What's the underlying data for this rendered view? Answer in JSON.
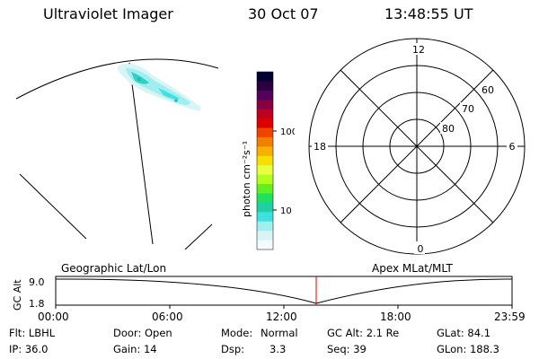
{
  "header": {
    "title": "Ultraviolet Imager",
    "date": "30 Oct 07",
    "time": "13:48:55 UT"
  },
  "colorbar": {
    "unit_label": "photon cm⁻²s⁻¹",
    "ticks": [
      "100",
      "10"
    ],
    "colors": [
      "#000033",
      "#2a0040",
      "#55005a",
      "#880044",
      "#bb0022",
      "#dd0000",
      "#ee4400",
      "#f08000",
      "#f5b000",
      "#f7e000",
      "#e8ff40",
      "#b0ff20",
      "#60f020",
      "#20e060",
      "#20d0a0",
      "#40e0e0",
      "#a0eef0",
      "#d8f4f4",
      "#f4fafa"
    ]
  },
  "polar_plot": {
    "mlt_labels": {
      "top": "12",
      "left": "18",
      "right": "6",
      "bottom": "0"
    },
    "lat_labels": [
      "60",
      "70",
      "80"
    ]
  },
  "timeline": {
    "left_label": "Geographic Lat/Lon",
    "right_label": "Apex MLat/MLT",
    "y_axis_label": "GC Alt",
    "y_ticks": [
      "9.0",
      "1.8"
    ],
    "x_ticks": [
      "00:00",
      "06:00",
      "12:00",
      "18:00",
      "23:59"
    ],
    "marker_color": "#dd0000"
  },
  "info": {
    "flt": "Flt: LBHL",
    "ip": "IP: 36.0",
    "door": "Door: Open",
    "gain": "Gain: 14",
    "mode_label": "Mode:",
    "mode_value": "Normal",
    "dsp_label": "Dsp:",
    "dsp_value": "3.3",
    "gc_alt": "GC Alt: 2.1 Re",
    "seq": "Seq: 39",
    "glat": "GLat:  84.1",
    "glon": "GLon: 188.3"
  }
}
